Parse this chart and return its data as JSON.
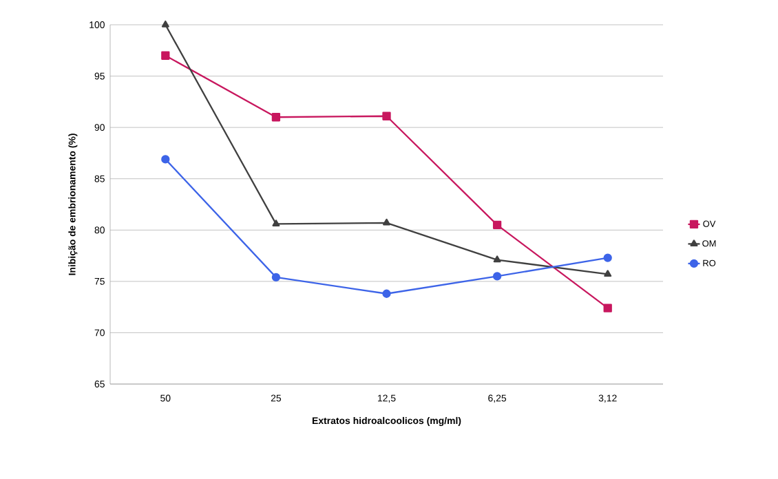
{
  "chart_data": {
    "type": "line",
    "xlabel": "Extratos hidroalcoolicos (mg/ml)",
    "ylabel": "Inibição de embrionamento (%)",
    "categories": [
      "50",
      "25",
      "12,5",
      "6,25",
      "3,12"
    ],
    "series": [
      {
        "name": "OV",
        "color": "#c8175e",
        "marker": "square",
        "values": [
          97.0,
          91.0,
          91.1,
          80.5,
          72.4
        ]
      },
      {
        "name": "OM",
        "color": "#404040",
        "marker": "triangle",
        "values": [
          100.0,
          80.6,
          80.7,
          77.1,
          75.7
        ]
      },
      {
        "name": "RO",
        "color": "#3d64e8",
        "marker": "circle",
        "values": [
          86.9,
          75.4,
          73.8,
          75.5,
          77.3
        ]
      }
    ],
    "ylim": [
      65,
      100
    ],
    "yticks": [
      65,
      70,
      75,
      80,
      85,
      90,
      95,
      100
    ],
    "grid": "y",
    "legend": "right"
  }
}
